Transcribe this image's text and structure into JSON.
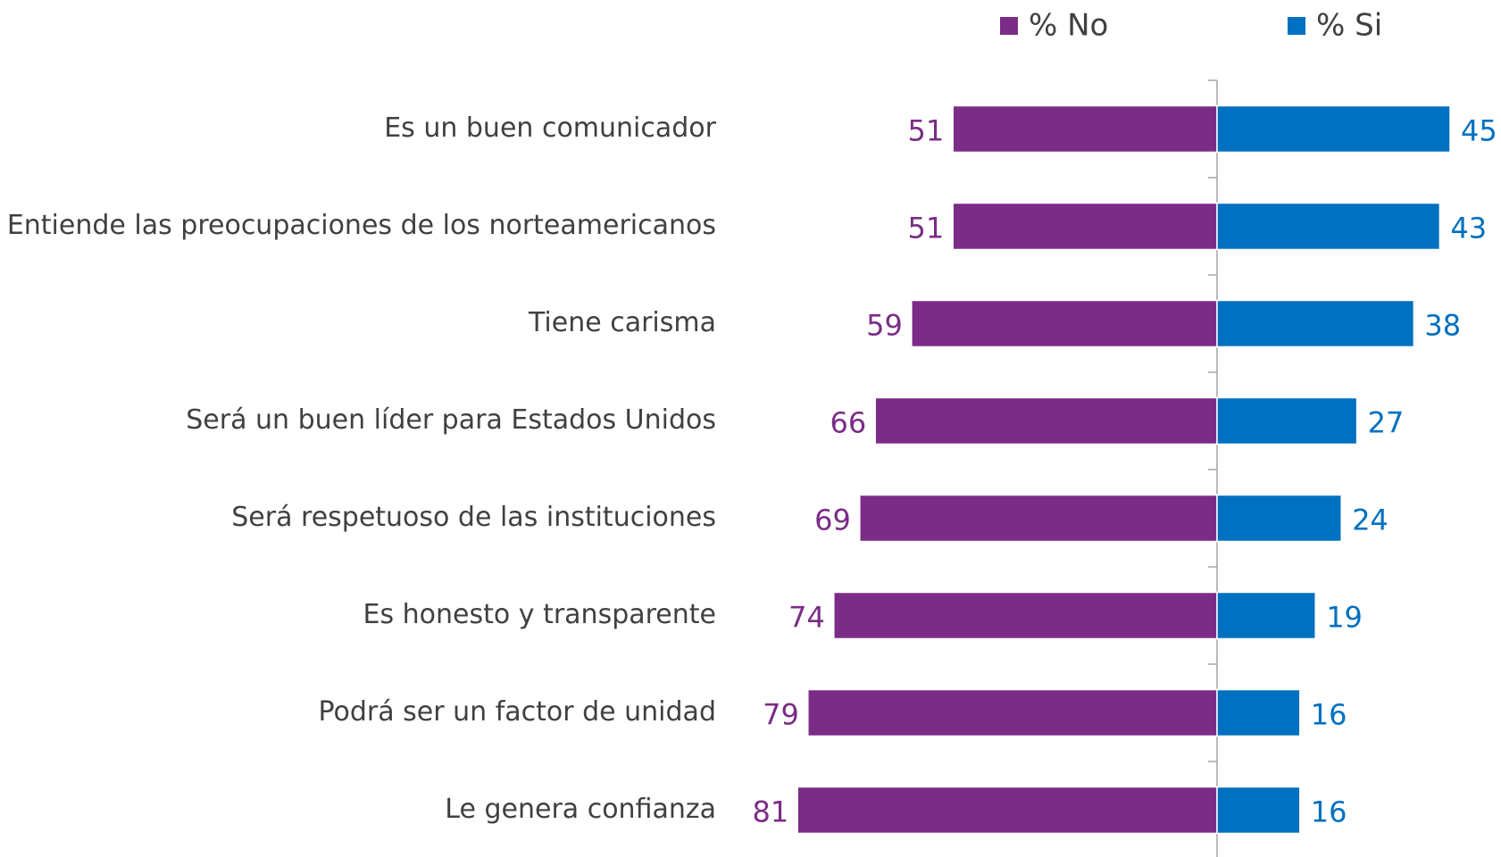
{
  "chart_data": {
    "type": "bar",
    "categories": [
      "Es un buen comunicador",
      "Entiende las preocupaciones de los norteamericanos",
      "Tiene carisma",
      "Será un buen líder para Estados Unidos",
      "Será respetuoso de las instituciones",
      "Es honesto y transparente",
      "Podrá ser un factor de unidad",
      "Le genera confianza"
    ],
    "series": [
      {
        "name": "% No",
        "color": "#7b2c87",
        "values": [
          51,
          51,
          59,
          66,
          69,
          74,
          79,
          81
        ]
      },
      {
        "name": "% Si",
        "color": "#0070c0",
        "values": [
          45,
          43,
          38,
          27,
          24,
          19,
          16,
          16
        ]
      }
    ]
  }
}
